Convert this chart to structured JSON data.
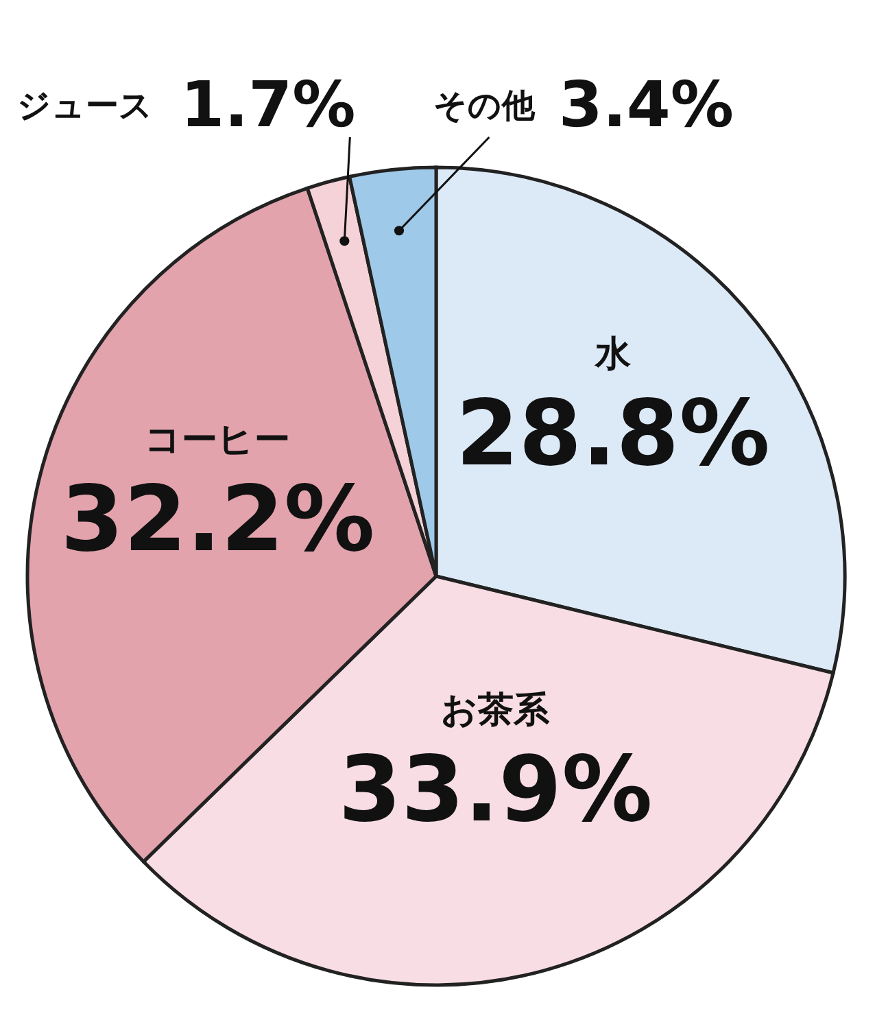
{
  "chart_data": {
    "type": "pie",
    "categories": [
      "水",
      "お茶系",
      "コーヒー",
      "ジュース",
      "その他"
    ],
    "values": [
      28.8,
      33.9,
      32.2,
      1.7,
      3.4
    ],
    "value_labels": [
      "28.8%",
      "33.9%",
      "32.2%",
      "1.7%",
      "3.4%"
    ],
    "colors": [
      "#dce9f6",
      "#f8dde4",
      "#e3a3ad",
      "#f5d2d7",
      "#9fc9e8"
    ]
  }
}
